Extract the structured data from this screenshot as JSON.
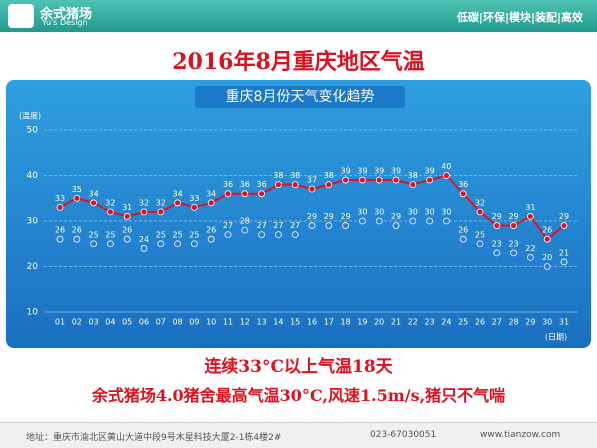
{
  "header": {
    "brand": "余式猪场",
    "brand_en": "Yu's Design",
    "slogan": "低碳|环保|模块|装配|高效"
  },
  "title": "2016年8月重庆地区气温",
  "chart_data": {
    "type": "line",
    "title": "重庆8月份天气变化趋势",
    "y_label": "(温度)",
    "x_label": "(日期)",
    "categories": [
      "01",
      "02",
      "03",
      "04",
      "05",
      "06",
      "07",
      "08",
      "09",
      "10",
      "11",
      "12",
      "13",
      "14",
      "15",
      "16",
      "17",
      "18",
      "19",
      "20",
      "21",
      "22",
      "23",
      "24",
      "25",
      "26",
      "27",
      "28",
      "29",
      "30",
      "31"
    ],
    "series": [
      {
        "color": "#e0102a",
        "values": [
          33,
          35,
          34,
          32,
          31,
          32,
          32,
          34,
          33,
          34,
          36,
          36,
          36,
          38,
          38,
          37,
          38,
          39,
          39,
          39,
          39,
          38,
          39,
          40,
          36,
          32,
          29,
          29,
          31,
          26,
          29
        ]
      },
      {
        "color": "#2a7de8",
        "values": [
          26,
          26,
          25,
          25,
          26,
          24,
          25,
          25,
          25,
          26,
          27,
          28,
          27,
          27,
          27,
          29,
          29,
          29,
          30,
          30,
          29,
          30,
          30,
          30,
          26,
          25,
          23,
          23,
          22,
          20,
          21
        ]
      }
    ],
    "ylim": [
      10,
      50
    ],
    "yticks": [
      10,
      20,
      30,
      40,
      50
    ],
    "grid": true
  },
  "notes": [
    "连续33°C以上气温18天",
    "余式猪场4.0猪舍最高气温30°C,风速1.5m/s,猪只不气喘"
  ],
  "footer": {
    "address": "地址：重庆市渝北区黄山大道中段9号木星科技大厦2-1栋4楼2#",
    "phone": "023-67030051",
    "website": "www.tianzow.com"
  }
}
